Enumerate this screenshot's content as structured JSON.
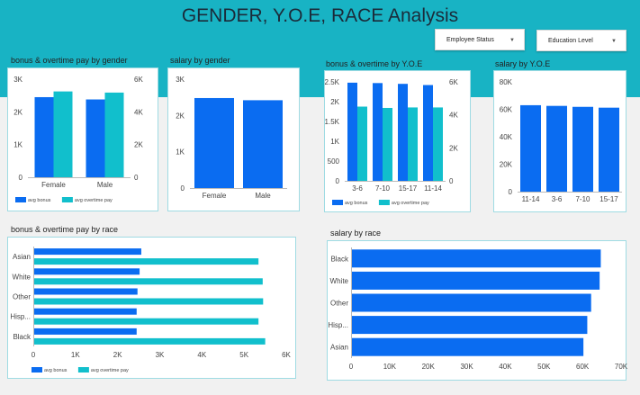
{
  "dashboard": {
    "title": "GENDER, Y.O.E, RACE Analysis",
    "filters": [
      {
        "label": "Employee Status"
      },
      {
        "label": "Education Level"
      }
    ]
  },
  "colors": {
    "banner": "#18b3c4",
    "bonus": "#0a6cf1",
    "overtime": "#11bfcc"
  },
  "chart_data": [
    {
      "id": "bonus_overtime_gender",
      "type": "bar",
      "title": "bonus & overtime pay by gender",
      "categories": [
        "Female",
        "Male"
      ],
      "series": [
        {
          "name": "avg bonus",
          "axis": "left",
          "values": [
            2450,
            2380
          ]
        },
        {
          "name": "avg overtime pay",
          "axis": "right",
          "values": [
            5250,
            5180
          ]
        }
      ],
      "ylim_left": [
        0,
        3000
      ],
      "yticks_left": [
        "0",
        "1K",
        "2K",
        "3K"
      ],
      "ylim_right": [
        0,
        6000
      ],
      "yticks_right": [
        "0",
        "2K",
        "4K",
        "6K"
      ],
      "legend": "bottom-left"
    },
    {
      "id": "salary_gender",
      "type": "bar",
      "title": "salary by gender",
      "categories": [
        "Female",
        "Male"
      ],
      "values": [
        2480,
        2420
      ],
      "ylim": [
        0,
        3000
      ],
      "yticks": [
        "0",
        "1K",
        "2K",
        "3K"
      ]
    },
    {
      "id": "bonus_overtime_yoe",
      "type": "bar",
      "title": "bonus & overtime by Y.O.E",
      "categories": [
        "3-6",
        "7-10",
        "15-17",
        "11-14"
      ],
      "series": [
        {
          "name": "avg bonus",
          "axis": "left",
          "values": [
            2480,
            2470,
            2450,
            2420
          ]
        },
        {
          "name": "avg overtime pay",
          "axis": "right",
          "values": [
            4500,
            4420,
            4450,
            4450
          ]
        }
      ],
      "ylim_left": [
        0,
        2500
      ],
      "yticks_left": [
        "0",
        "500",
        "1K",
        "1.5K",
        "2K",
        "2.5K"
      ],
      "ylim_right": [
        0,
        6000
      ],
      "yticks_right": [
        "0",
        "2K",
        "4K",
        "6K"
      ],
      "legend": "bottom-left"
    },
    {
      "id": "salary_yoe",
      "type": "bar",
      "title": "salary by Y.O.E",
      "categories": [
        "11-14",
        "3-6",
        "7-10",
        "15-17"
      ],
      "values": [
        63000,
        62500,
        61800,
        61200
      ],
      "ylim": [
        0,
        80000
      ],
      "yticks": [
        "0",
        "20K",
        "40K",
        "60K",
        "80K"
      ]
    },
    {
      "id": "bonus_overtime_race",
      "type": "hbar",
      "title": "bonus & overtime pay by race",
      "categories": [
        "Asian",
        "White",
        "Other",
        "Hisp...",
        "Black"
      ],
      "series": [
        {
          "name": "avg bonus",
          "values": [
            2540,
            2500,
            2450,
            2430,
            2430
          ]
        },
        {
          "name": "avg overtime pay",
          "values": [
            5320,
            5420,
            5430,
            5320,
            5480
          ]
        }
      ],
      "xlim": [
        0,
        6000
      ],
      "xticks": [
        "0",
        "1K",
        "2K",
        "3K",
        "4K",
        "5K",
        "6K"
      ],
      "legend": "bottom-left"
    },
    {
      "id": "salary_race",
      "type": "hbar",
      "title": "salary by race",
      "categories": [
        "Black",
        "White",
        "Other",
        "Hisp...",
        "Asian"
      ],
      "values": [
        64500,
        64200,
        62000,
        61000,
        60000
      ],
      "xlim": [
        0,
        70000
      ],
      "xticks": [
        "0",
        "10K",
        "20K",
        "30K",
        "40K",
        "50K",
        "60K",
        "70K"
      ]
    }
  ]
}
